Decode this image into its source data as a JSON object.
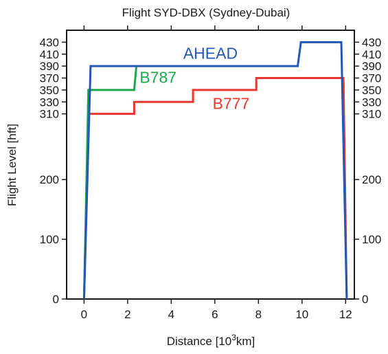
{
  "chart_data": {
    "type": "line",
    "title": "Flight SYD-DBX (Sydney-Dubai)",
    "xlabel_prefix": "Distance [10",
    "xlabel_sup": "3",
    "xlabel_suffix": "km]",
    "ylabel": "Flight Level [hft]",
    "xlim": [
      -0.8,
      12.4
    ],
    "ylim": [
      0,
      450
    ],
    "xticks": [
      0,
      2,
      4,
      6,
      8,
      10,
      12
    ],
    "yticks": [
      0,
      100,
      200,
      310,
      330,
      350,
      370,
      390,
      410,
      430
    ],
    "grid": false,
    "series": [
      {
        "name": "B777",
        "color": "#e8382f",
        "label_at": [
          5.9,
          318
        ],
        "x": [
          0,
          0.2,
          2.3,
          2.3,
          5.0,
          5.0,
          7.9,
          7.9,
          11.9,
          12.05
        ],
        "y": [
          0,
          310,
          310,
          330,
          330,
          350,
          350,
          370,
          370,
          0
        ]
      },
      {
        "name": "B787",
        "color": "#1aa84a",
        "label_at": [
          2.55,
          362
        ],
        "x": [
          0,
          0.2,
          2.3,
          2.4
        ],
        "y": [
          0,
          350,
          350,
          390
        ]
      },
      {
        "name": "AHEAD",
        "color": "#2357b8",
        "label_at": [
          4.55,
          402
        ],
        "x": [
          0,
          0.3,
          9.8,
          9.95,
          11.8,
          12.05
        ],
        "y": [
          0,
          390,
          390,
          430,
          430,
          0
        ]
      }
    ]
  }
}
